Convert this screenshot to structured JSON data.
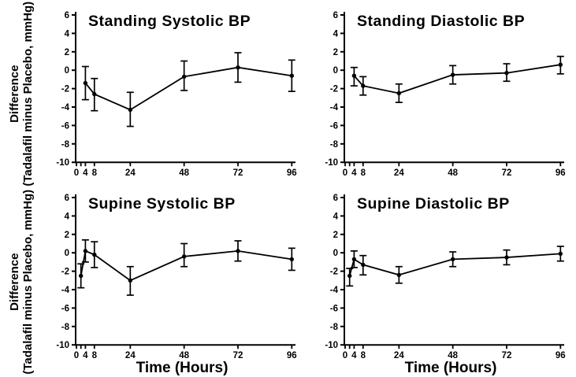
{
  "figure": {
    "background": "#ffffff",
    "ink_color": "#000000",
    "ylabel_line1": "Difference",
    "ylabel_line2": "(Tadalafil minus Placebo, mmHg)",
    "xlabel": "Time (Hours)"
  },
  "chart_data": [
    {
      "type": "line",
      "title": "Standing Systolic BP",
      "row": "top",
      "col": "left",
      "has_xlabel": false,
      "x": [
        4,
        8,
        24,
        48,
        72,
        96
      ],
      "y": [
        -1.4,
        -2.6,
        -4.3,
        -0.7,
        0.3,
        -0.6
      ],
      "err_low": [
        -3.2,
        -4.4,
        -6.1,
        -2.2,
        -1.3,
        -2.3
      ],
      "err_high": [
        0.4,
        -0.9,
        -2.4,
        1.0,
        1.9,
        1.1
      ]
    },
    {
      "type": "line",
      "title": "Standing Diastolic BP",
      "row": "top",
      "col": "right",
      "has_xlabel": false,
      "x": [
        4,
        8,
        24,
        48,
        72,
        96
      ],
      "y": [
        -0.6,
        -1.7,
        -2.5,
        -0.5,
        -0.3,
        0.6
      ],
      "err_low": [
        -1.7,
        -2.7,
        -3.5,
        -1.5,
        -1.2,
        -0.4
      ],
      "err_high": [
        0.3,
        -0.7,
        -1.5,
        0.5,
        0.7,
        1.5
      ]
    },
    {
      "type": "line",
      "title": "Supine Systolic BP",
      "row": "bottom",
      "col": "left",
      "has_xlabel": true,
      "x": [
        2,
        4,
        8,
        24,
        48,
        72,
        96
      ],
      "y": [
        -2.5,
        0.2,
        -0.2,
        -3.0,
        -0.4,
        0.2,
        -0.7
      ],
      "err_low": [
        -3.8,
        -1.0,
        -1.6,
        -4.6,
        -1.5,
        -0.9,
        -1.9
      ],
      "err_high": [
        -1.2,
        1.4,
        1.2,
        -1.5,
        1.0,
        1.3,
        0.5
      ]
    },
    {
      "type": "line",
      "title": "Supine Diastolic BP",
      "row": "bottom",
      "col": "right",
      "has_xlabel": true,
      "x": [
        2,
        4,
        8,
        24,
        48,
        72,
        96
      ],
      "y": [
        -2.5,
        -0.7,
        -1.3,
        -2.4,
        -0.7,
        -0.5,
        -0.1
      ],
      "err_low": [
        -3.6,
        -1.6,
        -2.4,
        -3.3,
        -1.5,
        -1.3,
        -0.9
      ],
      "err_high": [
        -1.7,
        0.2,
        -0.3,
        -1.5,
        0.1,
        0.3,
        0.7
      ]
    }
  ],
  "axes": {
    "ylim": [
      6,
      -10
    ],
    "yticks": [
      6,
      4,
      2,
      0,
      -2,
      -4,
      -6,
      -8,
      -10
    ],
    "ytick_labels": [
      "6",
      "4",
      "2",
      "0",
      "-2",
      "-4",
      "-6",
      "-8",
      "-10"
    ],
    "xlim": [
      0,
      96
    ],
    "xticks": [
      0,
      2,
      4,
      8,
      24,
      48,
      72,
      96
    ],
    "xtick_labeled": [
      0,
      4,
      8,
      24,
      48,
      72,
      96
    ],
    "xtick_labels": [
      "0",
      "4",
      "8",
      "24",
      "48",
      "72",
      "96"
    ],
    "grid": false,
    "legend": "none"
  }
}
